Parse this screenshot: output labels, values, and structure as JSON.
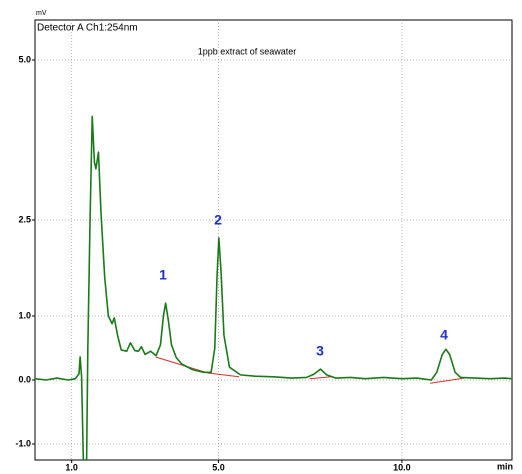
{
  "chart_data": {
    "type": "line",
    "title": "1ppb extract of seawater",
    "subtitle": "Detector A Ch1:254nm",
    "y_label": "mV",
    "x_label": "min",
    "xlim": [
      0,
      13
    ],
    "ylim": [
      -1.25,
      5.625
    ],
    "xticks": [
      {
        "value": 1,
        "label": "1.0"
      },
      {
        "value": 5,
        "label": "5.0"
      },
      {
        "value": 10,
        "label": "10.0"
      }
    ],
    "yticks": [
      {
        "value": 5,
        "label": "5.0"
      },
      {
        "value": 2.5,
        "label": "2.5"
      },
      {
        "value": 1,
        "label": "1.0"
      },
      {
        "value": 0,
        "label": "0.0"
      },
      {
        "value": -1,
        "label": "-1.0"
      }
    ],
    "grid": true,
    "series": [
      {
        "name": "Detector A Ch1:254nm",
        "color": "#1a7a1a",
        "x": [
          0.0,
          0.3,
          0.6,
          0.9,
          1.1,
          1.2,
          1.23,
          1.27,
          1.33,
          1.4,
          1.44,
          1.5,
          1.56,
          1.62,
          1.66,
          1.73,
          1.8,
          1.9,
          2.0,
          2.1,
          2.16,
          2.25,
          2.35,
          2.5,
          2.6,
          2.72,
          2.82,
          2.9,
          3.0,
          3.15,
          3.3,
          3.42,
          3.5,
          3.56,
          3.63,
          3.72,
          3.85,
          4.0,
          4.3,
          4.6,
          4.8,
          4.9,
          4.96,
          5.01,
          5.07,
          5.15,
          5.3,
          5.6,
          6.0,
          6.5,
          7.0,
          7.4,
          7.6,
          7.78,
          7.95,
          8.2,
          8.6,
          9.0,
          9.5,
          10.0,
          10.4,
          10.8,
          10.95,
          11.1,
          11.2,
          11.3,
          11.45,
          11.6,
          12.0,
          12.4,
          12.8,
          13.0
        ],
        "values": [
          0.02,
          0.0,
          0.03,
          0.0,
          0.02,
          0.1,
          0.36,
          0.05,
          -1.6,
          -1.6,
          0.5,
          2.5,
          4.12,
          3.4,
          3.3,
          3.56,
          2.6,
          1.6,
          1.0,
          0.88,
          0.97,
          0.7,
          0.47,
          0.45,
          0.58,
          0.46,
          0.45,
          0.52,
          0.4,
          0.45,
          0.38,
          0.55,
          1.0,
          1.2,
          0.95,
          0.55,
          0.35,
          0.25,
          0.16,
          0.12,
          0.12,
          0.5,
          1.6,
          2.22,
          1.7,
          0.7,
          0.2,
          0.08,
          0.06,
          0.05,
          0.03,
          0.04,
          0.09,
          0.17,
          0.08,
          0.03,
          0.04,
          0.02,
          0.04,
          0.02,
          0.03,
          0.0,
          0.12,
          0.4,
          0.48,
          0.4,
          0.12,
          0.04,
          0.03,
          0.02,
          0.03,
          0.02
        ]
      }
    ],
    "baselines": [
      {
        "color": "#d9302a",
        "x": [
          3.29,
          4.71,
          5.56
        ],
        "values": [
          0.36,
          0.11,
          0.05
        ]
      },
      {
        "color": "#d9302a",
        "x": [
          7.48,
          8.08
        ],
        "values": [
          0.02,
          0.05
        ]
      },
      {
        "color": "#d9302a",
        "x": [
          10.77,
          11.7
        ],
        "values": [
          -0.05,
          0.03
        ]
      }
    ],
    "annotations": [
      "1",
      "2",
      "3",
      "4"
    ]
  }
}
